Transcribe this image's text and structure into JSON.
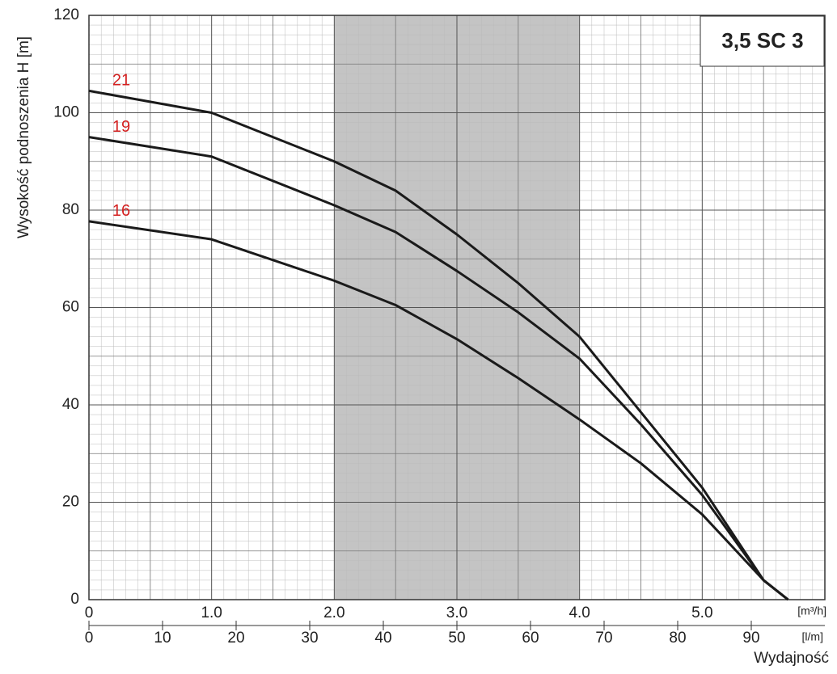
{
  "chart_data": {
    "type": "line",
    "title": "3,5 SC 3",
    "y_label": "Wysokość podnoszenia H [m]",
    "x_label": "Wydajność",
    "x_unit": "[m³/h]",
    "x2_unit": "[l/m]",
    "x": [
      0,
      1.0,
      2.0,
      2.5,
      3.0,
      3.5,
      4.0,
      4.5,
      5.0,
      5.5,
      5.7
    ],
    "series": [
      {
        "name": "21",
        "color": "#1a1a1a",
        "label_color": "#d42020",
        "values": [
          104.5,
          100,
          90,
          84,
          75,
          65,
          54,
          38.5,
          23,
          4,
          0
        ]
      },
      {
        "name": "19",
        "color": "#1a1a1a",
        "label_color": "#d42020",
        "values": [
          95,
          91,
          81,
          75.5,
          67.5,
          59,
          49.5,
          36,
          21.5,
          4,
          0
        ]
      },
      {
        "name": "16",
        "color": "#1a1a1a",
        "label_color": "#d42020",
        "values": [
          77.7,
          74,
          65.5,
          60.5,
          53.5,
          45.5,
          37,
          28,
          17.5,
          4,
          0
        ]
      }
    ],
    "xlim": [
      0,
      6.0
    ],
    "xticks": [
      0,
      {
        "value": 1,
        "label": "1.0"
      },
      {
        "value": 2,
        "label": "2.0"
      },
      {
        "value": 3,
        "label": "3.0"
      },
      {
        "value": 4,
        "label": "4.0"
      },
      {
        "value": 5,
        "label": "5.0"
      }
    ],
    "x2lim": [
      0,
      100
    ],
    "x2ticks": [
      0,
      10,
      20,
      30,
      40,
      50,
      60,
      70,
      80,
      90
    ],
    "ylim": [
      0,
      120
    ],
    "yticks": [
      0,
      20,
      40,
      60,
      80,
      100,
      120
    ],
    "highlight_range": [
      2.0,
      4.0
    ],
    "highlight_color": "#c4c4c4",
    "grid": true,
    "minor_grid": true
  }
}
